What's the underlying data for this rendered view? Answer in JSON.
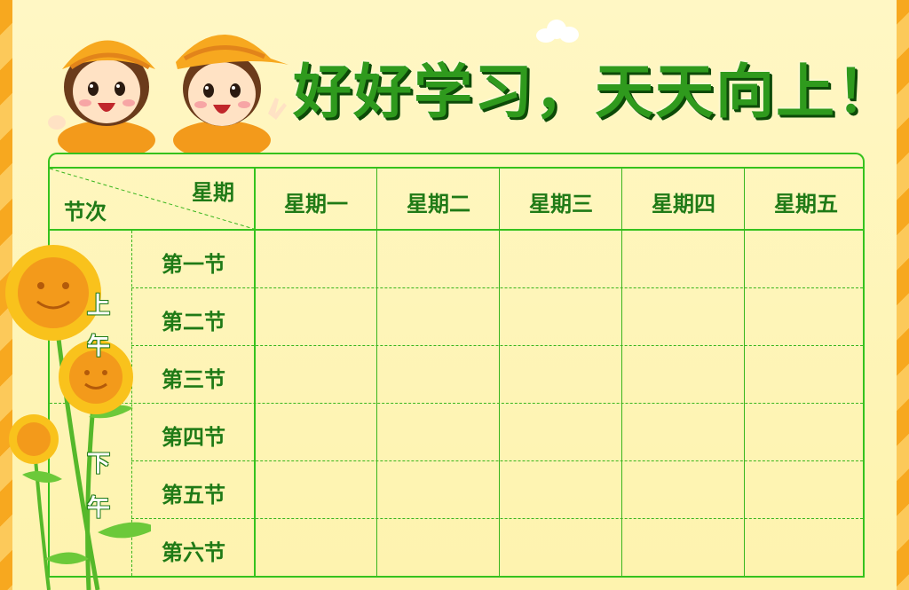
{
  "title": "好好学习，天天向上！",
  "header": {
    "corner_top": "星期",
    "corner_bottom": "节次",
    "days": [
      "星期一",
      "星期二",
      "星期三",
      "星期四",
      "星期五"
    ]
  },
  "periods": [
    "第一节",
    "第二节",
    "第三节",
    "第四节",
    "第五节",
    "第六节"
  ],
  "morning_label": [
    "上",
    "午"
  ],
  "afternoon_label": [
    "下",
    "午"
  ],
  "colors": {
    "background": "#fef6b4",
    "grid": "#35c21d",
    "text": "#1f7a16",
    "title": "#2f9a1d",
    "stripe": "#f7a81f"
  }
}
